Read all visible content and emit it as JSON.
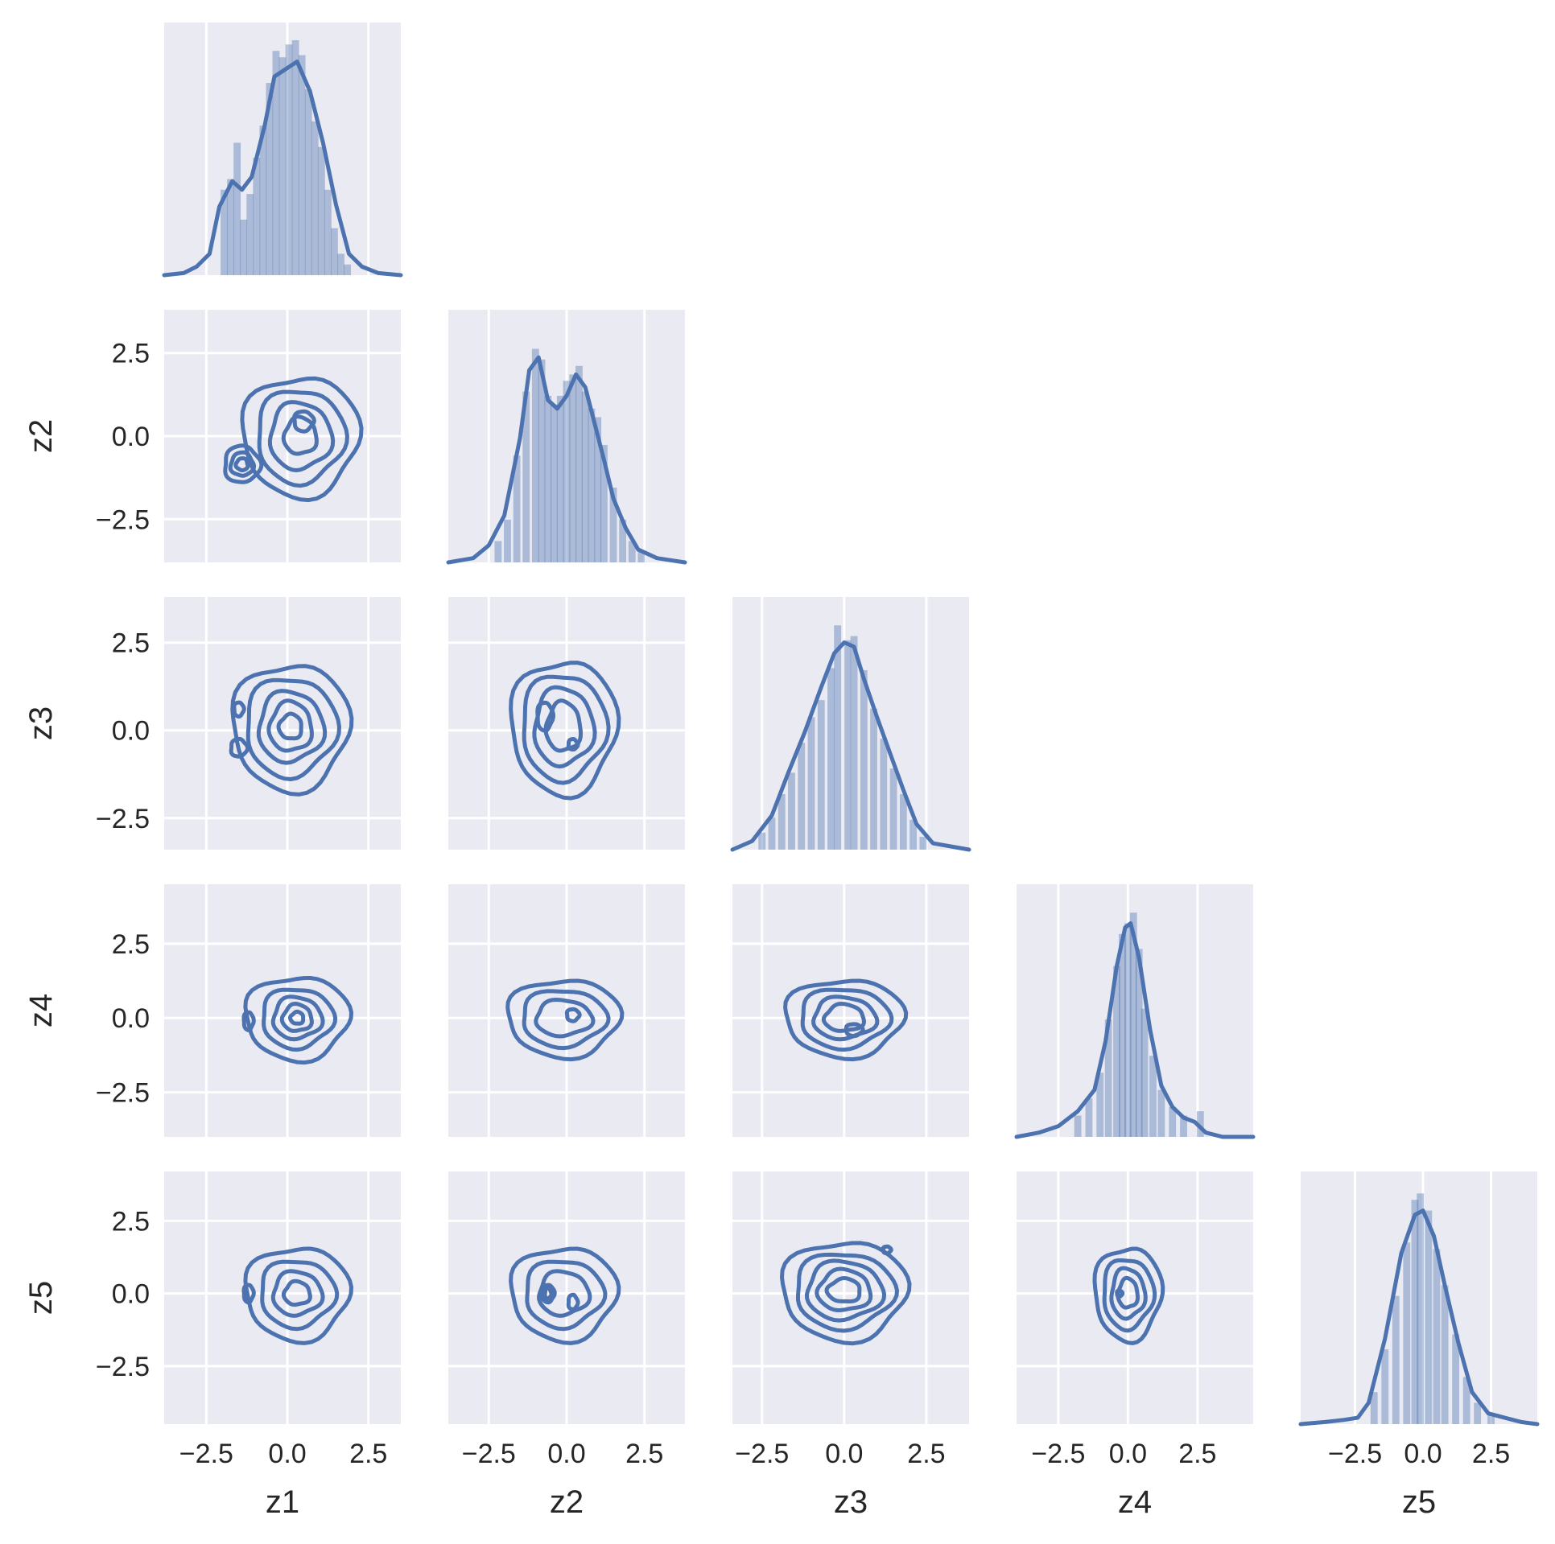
{
  "chart_data": {
    "type": "pairgrid-corner",
    "variables": [
      "z1",
      "z2",
      "z3",
      "z4",
      "z5"
    ],
    "tick_values": [
      -2.5,
      0.0,
      2.5
    ],
    "tick_labels": [
      "−2.5",
      "0.0",
      "2.5"
    ],
    "axis_ranges": {
      "z1": [
        -3.8,
        3.5
      ],
      "z2": [
        -3.8,
        3.8
      ],
      "z3": [
        -3.4,
        3.8
      ],
      "z4": [
        -4.0,
        4.5
      ],
      "z5": [
        -4.5,
        4.2
      ]
    },
    "grid": true,
    "colors": {
      "panel_background": "#EAEAF2",
      "series": "#4C72B0",
      "grid": "#FFFFFF"
    },
    "diagonal": [
      {
        "variable": "z1",
        "plot": "histogram+kde",
        "kde": [
          [
            -3.8,
            0.0
          ],
          [
            -3.2,
            0.01
          ],
          [
            -2.8,
            0.04
          ],
          [
            -2.4,
            0.1
          ],
          [
            -2.1,
            0.32
          ],
          [
            -1.7,
            0.44
          ],
          [
            -1.4,
            0.4
          ],
          [
            -1.1,
            0.46
          ],
          [
            -0.7,
            0.7
          ],
          [
            -0.4,
            0.93
          ],
          [
            0.0,
            0.97
          ],
          [
            0.3,
            1.0
          ],
          [
            0.7,
            0.86
          ],
          [
            1.1,
            0.62
          ],
          [
            1.5,
            0.33
          ],
          [
            1.9,
            0.1
          ],
          [
            2.3,
            0.04
          ],
          [
            2.8,
            0.01
          ],
          [
            3.5,
            0.0
          ]
        ],
        "hist": [
          [
            -1.95,
            0.4
          ],
          [
            -1.75,
            0.45
          ],
          [
            -1.55,
            0.62
          ],
          [
            -1.35,
            0.26
          ],
          [
            -1.15,
            0.38
          ],
          [
            -0.95,
            0.55
          ],
          [
            -0.75,
            0.7
          ],
          [
            -0.55,
            0.9
          ],
          [
            -0.35,
            1.05
          ],
          [
            -0.15,
            1.02
          ],
          [
            0.05,
            1.08
          ],
          [
            0.25,
            1.1
          ],
          [
            0.45,
            1.03
          ],
          [
            0.65,
            0.87
          ],
          [
            0.85,
            0.72
          ],
          [
            1.05,
            0.6
          ],
          [
            1.25,
            0.4
          ],
          [
            1.45,
            0.22
          ],
          [
            1.65,
            0.1
          ],
          [
            1.85,
            0.05
          ]
        ]
      },
      {
        "variable": "z2",
        "plot": "histogram+kde",
        "kde": [
          [
            -3.8,
            0.0
          ],
          [
            -3.0,
            0.02
          ],
          [
            -2.5,
            0.08
          ],
          [
            -2.0,
            0.22
          ],
          [
            -1.5,
            0.58
          ],
          [
            -1.2,
            0.9
          ],
          [
            -0.9,
            0.96
          ],
          [
            -0.6,
            0.76
          ],
          [
            -0.3,
            0.72
          ],
          [
            0.0,
            0.78
          ],
          [
            0.3,
            0.88
          ],
          [
            0.6,
            0.82
          ],
          [
            0.9,
            0.65
          ],
          [
            1.2,
            0.48
          ],
          [
            1.5,
            0.3
          ],
          [
            1.9,
            0.16
          ],
          [
            2.3,
            0.06
          ],
          [
            2.9,
            0.02
          ],
          [
            3.8,
            0.0
          ]
        ],
        "hist": [
          [
            -2.2,
            0.1
          ],
          [
            -1.9,
            0.2
          ],
          [
            -1.6,
            0.5
          ],
          [
            -1.3,
            0.8
          ],
          [
            -1.0,
            1.0
          ],
          [
            -0.8,
            0.95
          ],
          [
            -0.6,
            0.78
          ],
          [
            -0.4,
            0.74
          ],
          [
            -0.2,
            0.78
          ],
          [
            0.0,
            0.85
          ],
          [
            0.2,
            0.88
          ],
          [
            0.4,
            0.92
          ],
          [
            0.6,
            0.8
          ],
          [
            0.8,
            0.72
          ],
          [
            1.0,
            0.68
          ],
          [
            1.2,
            0.55
          ],
          [
            1.5,
            0.35
          ],
          [
            1.8,
            0.2
          ],
          [
            2.1,
            0.1
          ],
          [
            2.4,
            0.05
          ]
        ]
      },
      {
        "variable": "z3",
        "plot": "histogram+kde",
        "kde": [
          [
            -3.4,
            0.0
          ],
          [
            -2.8,
            0.04
          ],
          [
            -2.2,
            0.16
          ],
          [
            -1.7,
            0.36
          ],
          [
            -1.2,
            0.55
          ],
          [
            -0.7,
            0.76
          ],
          [
            -0.3,
            0.92
          ],
          [
            0.0,
            0.97
          ],
          [
            0.3,
            0.95
          ],
          [
            0.6,
            0.8
          ],
          [
            1.0,
            0.62
          ],
          [
            1.4,
            0.45
          ],
          [
            1.8,
            0.28
          ],
          [
            2.2,
            0.12
          ],
          [
            2.7,
            0.03
          ],
          [
            3.8,
            0.0
          ]
        ],
        "hist": [
          [
            -2.5,
            0.08
          ],
          [
            -2.2,
            0.15
          ],
          [
            -1.9,
            0.26
          ],
          [
            -1.6,
            0.36
          ],
          [
            -1.3,
            0.5
          ],
          [
            -1.0,
            0.62
          ],
          [
            -0.7,
            0.7
          ],
          [
            -0.4,
            0.85
          ],
          [
            -0.2,
            1.05
          ],
          [
            0.1,
            0.98
          ],
          [
            0.3,
            1.0
          ],
          [
            0.6,
            0.84
          ],
          [
            0.9,
            0.66
          ],
          [
            1.2,
            0.52
          ],
          [
            1.5,
            0.38
          ],
          [
            1.8,
            0.26
          ],
          [
            2.1,
            0.14
          ],
          [
            2.4,
            0.06
          ]
        ]
      },
      {
        "variable": "z4",
        "plot": "histogram+kde",
        "kde": [
          [
            -4.0,
            0.0
          ],
          [
            -3.2,
            0.02
          ],
          [
            -2.5,
            0.05
          ],
          [
            -1.8,
            0.12
          ],
          [
            -1.2,
            0.22
          ],
          [
            -0.8,
            0.45
          ],
          [
            -0.4,
            0.8
          ],
          [
            -0.1,
            0.98
          ],
          [
            0.1,
            1.0
          ],
          [
            0.4,
            0.84
          ],
          [
            0.8,
            0.5
          ],
          [
            1.2,
            0.24
          ],
          [
            1.6,
            0.14
          ],
          [
            2.0,
            0.09
          ],
          [
            2.4,
            0.07
          ],
          [
            2.8,
            0.02
          ],
          [
            3.4,
            0.0
          ],
          [
            4.5,
            0.0
          ]
        ],
        "hist": [
          [
            -1.8,
            0.1
          ],
          [
            -1.4,
            0.18
          ],
          [
            -1.0,
            0.3
          ],
          [
            -0.7,
            0.55
          ],
          [
            -0.4,
            0.8
          ],
          [
            -0.2,
            0.95
          ],
          [
            0.0,
            1.0
          ],
          [
            0.2,
            1.05
          ],
          [
            0.4,
            0.88
          ],
          [
            0.6,
            0.6
          ],
          [
            0.9,
            0.38
          ],
          [
            1.2,
            0.22
          ],
          [
            1.6,
            0.14
          ],
          [
            2.0,
            0.1
          ],
          [
            2.6,
            0.12
          ]
        ]
      },
      {
        "variable": "z5",
        "plot": "histogram+kde",
        "kde": [
          [
            -4.5,
            0.0
          ],
          [
            -3.6,
            0.01
          ],
          [
            -2.9,
            0.02
          ],
          [
            -2.4,
            0.03
          ],
          [
            -2.0,
            0.1
          ],
          [
            -1.4,
            0.4
          ],
          [
            -0.8,
            0.8
          ],
          [
            -0.3,
            0.98
          ],
          [
            0.0,
            1.0
          ],
          [
            0.4,
            0.88
          ],
          [
            0.8,
            0.65
          ],
          [
            1.3,
            0.38
          ],
          [
            1.8,
            0.15
          ],
          [
            2.4,
            0.05
          ],
          [
            3.0,
            0.03
          ],
          [
            3.6,
            0.01
          ],
          [
            4.2,
            0.0
          ]
        ],
        "hist": [
          [
            -1.8,
            0.15
          ],
          [
            -1.4,
            0.35
          ],
          [
            -1.0,
            0.6
          ],
          [
            -0.6,
            0.85
          ],
          [
            -0.3,
            1.05
          ],
          [
            -0.1,
            1.08
          ],
          [
            0.2,
            1.0
          ],
          [
            0.5,
            0.82
          ],
          [
            0.8,
            0.65
          ],
          [
            1.2,
            0.42
          ],
          [
            1.6,
            0.22
          ],
          [
            2.0,
            0.1
          ],
          [
            2.5,
            0.05
          ]
        ]
      }
    ],
    "lower_kde_contours": [
      {
        "x": "z1",
        "y": "z2",
        "blobs": [
          {
            "cx": 0.4,
            "cy": 0.0,
            "levels": [
              [
                1.8,
                1.8
              ],
              [
                1.35,
                1.4
              ],
              [
                0.95,
                1.0
              ],
              [
                0.5,
                0.55
              ]
            ]
          },
          {
            "cx": 0.5,
            "cy": 0.45,
            "levels": [
              [
                0.3,
                0.3
              ]
            ]
          },
          {
            "cx": -1.4,
            "cy": -0.85,
            "levels": [
              [
                0.55,
                0.55
              ],
              [
                0.35,
                0.35
              ],
              [
                0.18,
                0.18
              ]
            ]
          }
        ]
      },
      {
        "x": "z1",
        "y": "z3",
        "blobs": [
          {
            "cx": 0.1,
            "cy": 0.1,
            "levels": [
              [
                1.8,
                1.8
              ],
              [
                1.4,
                1.4
              ],
              [
                1.0,
                1.0
              ],
              [
                0.65,
                0.7
              ],
              [
                0.35,
                0.35
              ]
            ]
          },
          {
            "cx": -1.5,
            "cy": 0.6,
            "levels": [
              [
                0.15,
                0.2
              ]
            ]
          },
          {
            "cx": -1.5,
            "cy": -0.5,
            "levels": [
              [
                0.25,
                0.25
              ]
            ]
          }
        ]
      },
      {
        "x": "z2",
        "y": "z3",
        "blobs": [
          {
            "cx": -0.1,
            "cy": 0.1,
            "levels": [
              [
                1.7,
                1.9
              ],
              [
                1.35,
                1.5
              ],
              [
                0.95,
                1.1
              ],
              [
                0.55,
                0.7
              ]
            ]
          },
          {
            "cx": -0.7,
            "cy": 0.4,
            "levels": [
              [
                0.25,
                0.4
              ]
            ]
          },
          {
            "cx": 0.2,
            "cy": -0.4,
            "levels": [
              [
                0.15,
                0.15
              ]
            ]
          }
        ]
      },
      {
        "x": "z1",
        "y": "z4",
        "blobs": [
          {
            "cx": 0.3,
            "cy": 0.0,
            "levels": [
              [
                1.6,
                1.4
              ],
              [
                1.1,
                1.0
              ],
              [
                0.75,
                0.7
              ],
              [
                0.45,
                0.45
              ],
              [
                0.2,
                0.2
              ]
            ]
          },
          {
            "cx": -1.2,
            "cy": -0.1,
            "levels": [
              [
                0.15,
                0.3
              ]
            ]
          }
        ]
      },
      {
        "x": "z2",
        "y": "z4",
        "blobs": [
          {
            "cx": -0.1,
            "cy": 0.0,
            "levels": [
              [
                1.8,
                1.3
              ],
              [
                1.35,
                0.95
              ],
              [
                0.9,
                0.6
              ]
            ]
          },
          {
            "cx": 0.2,
            "cy": 0.1,
            "levels": [
              [
                0.2,
                0.2
              ]
            ]
          }
        ]
      },
      {
        "x": "z3",
        "y": "z4",
        "blobs": [
          {
            "cx": 0.0,
            "cy": 0.0,
            "levels": [
              [
                1.8,
                1.3
              ],
              [
                1.35,
                1.0
              ],
              [
                0.95,
                0.7
              ],
              [
                0.6,
                0.45
              ]
            ]
          },
          {
            "cx": 0.3,
            "cy": -0.4,
            "levels": [
              [
                0.25,
                0.2
              ]
            ]
          }
        ]
      },
      {
        "x": "z1",
        "y": "z5",
        "blobs": [
          {
            "cx": 0.3,
            "cy": 0.0,
            "levels": [
              [
                1.6,
                1.6
              ],
              [
                1.15,
                1.15
              ],
              [
                0.75,
                0.75
              ],
              [
                0.4,
                0.4
              ]
            ]
          },
          {
            "cx": -1.2,
            "cy": 0.0,
            "levels": [
              [
                0.15,
                0.3
              ]
            ]
          }
        ]
      },
      {
        "x": "z2",
        "y": "z5",
        "blobs": [
          {
            "cx": -0.1,
            "cy": 0.0,
            "levels": [
              [
                1.7,
                1.6
              ],
              [
                1.25,
                1.15
              ],
              [
                0.8,
                0.75
              ]
            ]
          },
          {
            "cx": -0.6,
            "cy": 0.0,
            "levels": [
              [
                0.2,
                0.3
              ],
              [
                0.1,
                0.18
              ]
            ]
          },
          {
            "cx": 0.2,
            "cy": -0.3,
            "levels": [
              [
                0.15,
                0.25
              ]
            ]
          }
        ]
      },
      {
        "x": "z3",
        "y": "z5",
        "blobs": [
          {
            "cx": 0.0,
            "cy": 0.1,
            "levels": [
              [
                1.9,
                1.7
              ],
              [
                1.5,
                1.3
              ],
              [
                1.15,
                1.0
              ],
              [
                0.8,
                0.7
              ],
              [
                0.5,
                0.4
              ]
            ]
          },
          {
            "cx": 1.3,
            "cy": 1.5,
            "levels": [
              [
                0.12,
                0.12
              ]
            ]
          }
        ]
      },
      {
        "x": "z4",
        "y": "z5",
        "blobs": [
          {
            "cx": 0.0,
            "cy": 0.0,
            "levels": [
              [
                1.2,
                1.6
              ],
              [
                0.9,
                1.2
              ],
              [
                0.6,
                0.85
              ],
              [
                0.35,
                0.5
              ]
            ]
          },
          {
            "cx": -0.3,
            "cy": 0.0,
            "levels": [
              [
                0.1,
                0.1
              ]
            ]
          }
        ]
      }
    ]
  }
}
